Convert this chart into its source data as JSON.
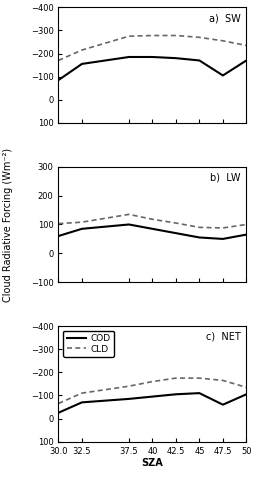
{
  "x": [
    30.0,
    32.5,
    37.5,
    40.0,
    42.5,
    45.0,
    47.5,
    50.0
  ],
  "sw_cod": [
    -85,
    -155,
    -185,
    -185,
    -180,
    -170,
    -105,
    -170
  ],
  "sw_cld": [
    -170,
    -215,
    -275,
    -278,
    -278,
    -270,
    -255,
    -235
  ],
  "lw_cod": [
    60,
    85,
    100,
    85,
    70,
    55,
    50,
    65
  ],
  "lw_cld": [
    103,
    108,
    135,
    118,
    105,
    90,
    88,
    100
  ],
  "net_cod": [
    -25,
    -70,
    -85,
    -95,
    -105,
    -110,
    -60,
    -105
  ],
  "net_cld": [
    -65,
    -110,
    -140,
    -160,
    -175,
    -175,
    -165,
    -135
  ],
  "sw_ylim": [
    100,
    -400
  ],
  "sw_yticks": [
    -400,
    -300,
    -200,
    -100,
    0,
    100
  ],
  "lw_ylim": [
    -100,
    300
  ],
  "lw_yticks": [
    -100,
    0,
    100,
    200,
    300
  ],
  "net_ylim": [
    100,
    -400
  ],
  "net_yticks": [
    -400,
    -300,
    -200,
    -100,
    0,
    100
  ],
  "xlim": [
    30.0,
    50.0
  ],
  "xticks": [
    30.0,
    32.5,
    37.5,
    40.0,
    42.5,
    45.0,
    47.5,
    50.0
  ],
  "xticklabels_full": [
    "30.0",
    "32.5",
    "37.5",
    "40",
    "42.5",
    "45",
    "47.5",
    "50"
  ],
  "xlabel": "SZA",
  "ylabel": "Cloud Radiative Forcing (Wm⁻²)",
  "label_cod": "COD",
  "label_cld": "CLD",
  "color_cod": "#000000",
  "color_cld": "#666666",
  "linewidth_cod": 1.5,
  "linewidth_cld": 1.2,
  "panel_labels": [
    "a)  SW",
    "b)  LW",
    "c)  NET"
  ],
  "title_fontsize": 7,
  "tick_fontsize": 6,
  "label_fontsize": 7,
  "legend_fontsize": 6.5
}
